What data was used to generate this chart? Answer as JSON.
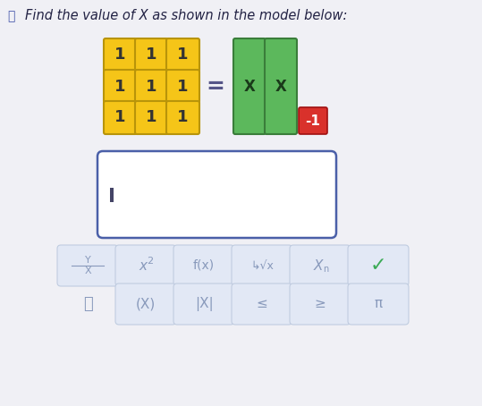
{
  "title": "Find the value of X as shown in the model below:",
  "bg_color": "#f0f0f5",
  "yellow_color": "#f5c518",
  "yellow_border": "#b8940a",
  "green_color": "#5cb85c",
  "green_border": "#3a7d3a",
  "red_color": "#d9312b",
  "red_border": "#a01010",
  "answer_box_color": "#ffffff",
  "answer_box_border": "#4a5fa8",
  "button_bg": "#e2e8f5",
  "button_border": "#c0cce0",
  "button_text_color": "#8899bb",
  "check_color": "#3aaa55",
  "grid_values": [
    [
      "1",
      "1",
      "1"
    ],
    [
      "1",
      "1",
      "1"
    ],
    [
      "1",
      "1",
      "1"
    ]
  ],
  "green_labels": [
    "X",
    "X"
  ],
  "red_label": "-1",
  "title_color": "#4455aa"
}
